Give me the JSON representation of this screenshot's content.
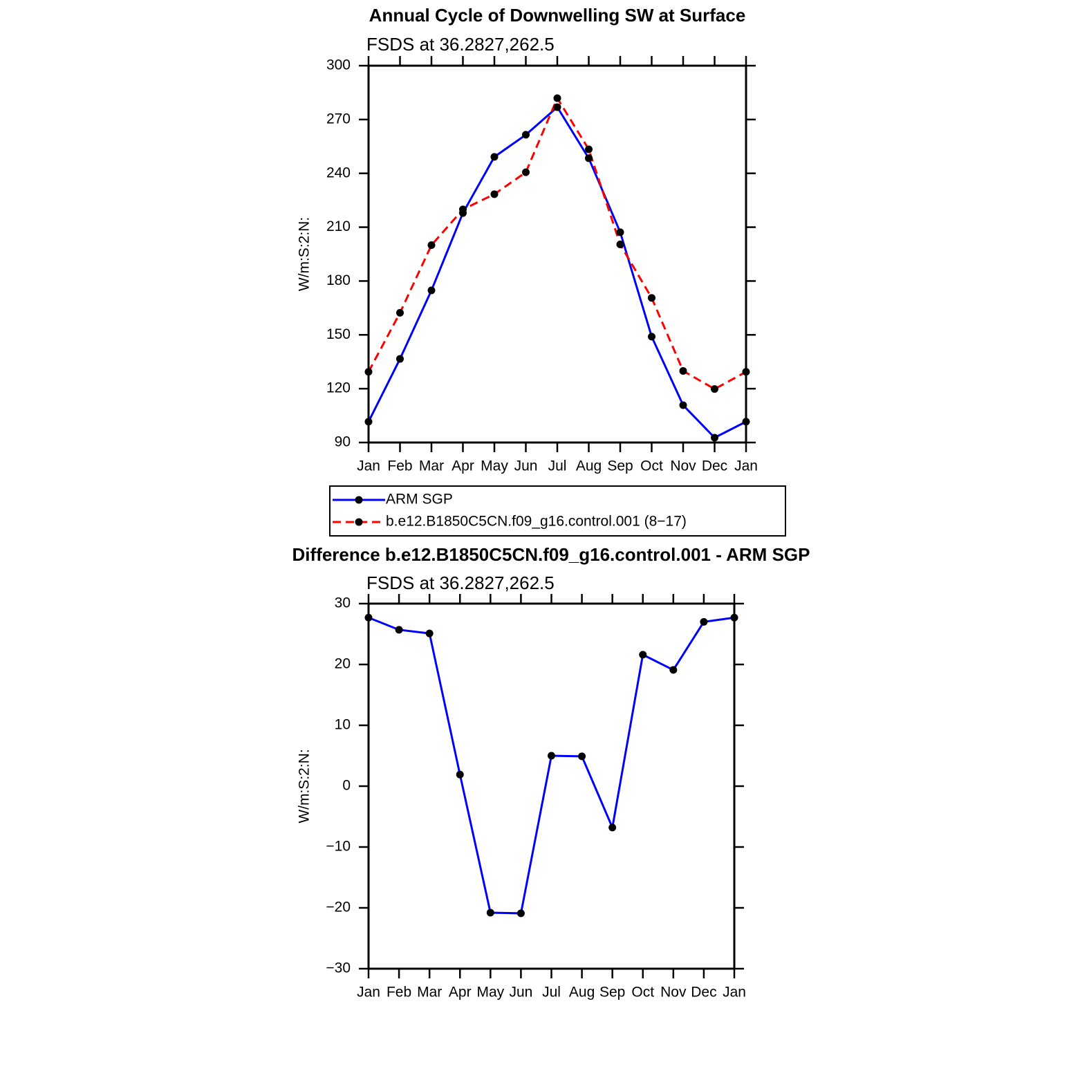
{
  "chart_data": [
    {
      "type": "line",
      "title": "Annual Cycle of Downwelling SW at Surface",
      "subtitle": "FSDS at 36.2827,262.5",
      "y_label": "W/m:S:2:N:",
      "categories": [
        "Jan",
        "Feb",
        "Mar",
        "Apr",
        "May",
        "Jun",
        "Jul",
        "Aug",
        "Sep",
        "Oct",
        "Nov",
        "Dec",
        "Jan"
      ],
      "series": [
        {
          "name": "ARM SGP",
          "color": "#0000ff",
          "linestyle": "solid",
          "values": [
            101.6,
            136.6,
            174.8,
            217.9,
            249.2,
            261.5,
            276.9,
            248.4,
            207.2,
            149.0,
            110.8,
            92.7,
            101.6
          ]
        },
        {
          "name": "b.e12.B1850C5CN.f09_g16.control.001 (8−17)",
          "color": "#ff0000",
          "linestyle": "dashed",
          "values": [
            129.4,
            162.3,
            200.0,
            219.9,
            228.4,
            240.6,
            281.9,
            253.4,
            200.4,
            170.6,
            129.9,
            119.8,
            129.4
          ]
        }
      ],
      "marker_color": "#000000",
      "ylim": [
        90,
        300
      ],
      "yticks": [
        90,
        120,
        150,
        180,
        210,
        240,
        270,
        300
      ],
      "legend": "below"
    },
    {
      "type": "line",
      "title": "Difference b.e12.B1850C5CN.f09_g16.control.001 - ARM SGP",
      "subtitle": "FSDS at 36.2827,262.5",
      "y_label": "W/m:S:2:N:",
      "categories": [
        "Jan",
        "Feb",
        "Mar",
        "Apr",
        "May",
        "Jun",
        "Jul",
        "Aug",
        "Sep",
        "Oct",
        "Nov",
        "Dec",
        "Jan"
      ],
      "series": [
        {
          "color": "#0000ff",
          "linestyle": "solid",
          "values": [
            27.7,
            25.7,
            25.1,
            1.9,
            -20.8,
            -20.9,
            5.0,
            4.9,
            -6.8,
            21.6,
            19.1,
            27.0,
            27.7
          ]
        }
      ],
      "marker_color": "#000000",
      "ylim": [
        -30,
        30
      ],
      "yticks": [
        {
          "value": -30,
          "label": "−30"
        },
        {
          "value": -20,
          "label": "−20"
        },
        {
          "value": -10,
          "label": "−10"
        },
        0,
        10,
        20,
        30
      ]
    }
  ]
}
